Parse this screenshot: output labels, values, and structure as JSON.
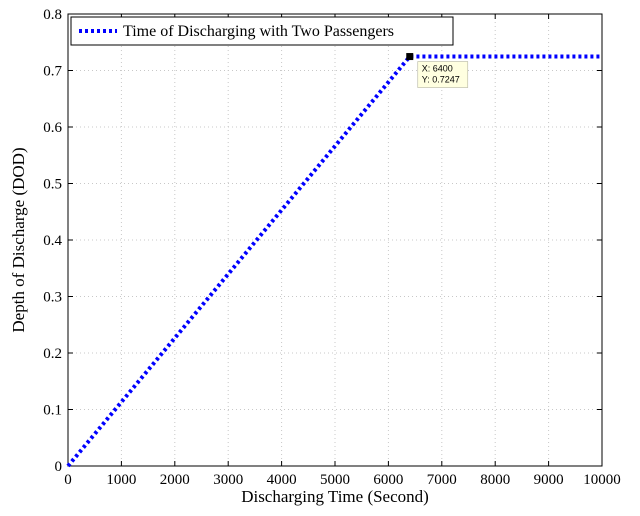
{
  "chart_data": {
    "type": "line",
    "xlabel": "Discharging Time (Second)",
    "ylabel": "Depth of Discharge (DOD)",
    "xlim": [
      0,
      10000
    ],
    "ylim": [
      0,
      0.8
    ],
    "xticks": [
      0,
      1000,
      2000,
      3000,
      4000,
      5000,
      6000,
      7000,
      8000,
      9000,
      10000
    ],
    "yticks": [
      0,
      0.1,
      0.2,
      0.3,
      0.4,
      0.5,
      0.6,
      0.7,
      0.8
    ],
    "grid": true,
    "legend_position": "top-left",
    "series": [
      {
        "name": "Time of Discharging with Two Passengers",
        "color": "#0000ff",
        "style": "dotted",
        "x": [
          0,
          6400,
          10000
        ],
        "y": [
          0,
          0.7247,
          0.7247
        ]
      }
    ],
    "annotation": {
      "x": 6400,
      "y": 0.7247,
      "label_x": "X: 6400",
      "label_y": "Y: 0.7247"
    }
  }
}
